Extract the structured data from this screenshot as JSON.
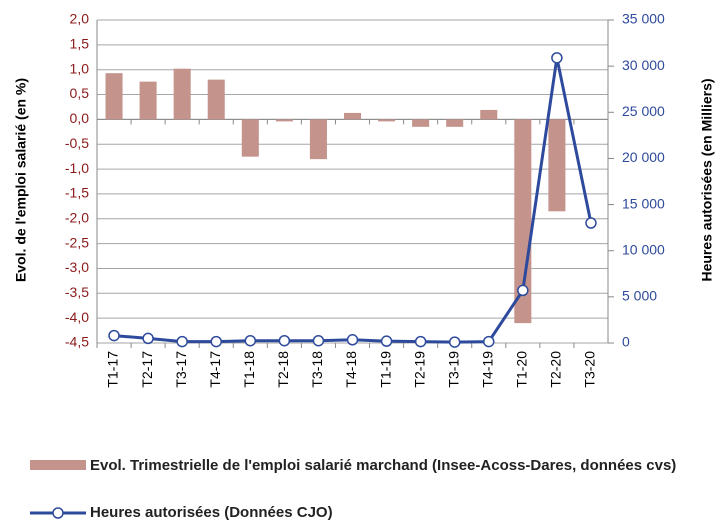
{
  "chart_data": {
    "type": "bar_line",
    "categories": [
      "T1-17",
      "T2-17",
      "T3-17",
      "T4-17",
      "T1-18",
      "T2-18",
      "T3-18",
      "T4-18",
      "T1-19",
      "T2-19",
      "T3-19",
      "T4-19",
      "T1-20",
      "T2-20",
      "T3-20"
    ],
    "series": [
      {
        "name": "Evol. Trimestrielle de l'emploi salarié marchand (Insee-Acoss-Dares, données cvs)",
        "type": "bar",
        "color": "#c4938c",
        "axis": "y",
        "values": [
          0.93,
          0.76,
          1.02,
          0.8,
          -0.75,
          -0.04,
          -0.8,
          0.13,
          -0.04,
          -0.15,
          -0.15,
          0.19,
          -4.1,
          -1.85,
          null
        ]
      },
      {
        "name": "Heures autorisées (Données CJO)",
        "type": "line",
        "color": "#2e4a9c",
        "axis": "y2",
        "values": [
          800,
          500,
          150,
          150,
          250,
          250,
          250,
          350,
          200,
          150,
          100,
          150,
          5700,
          30900,
          13000
        ]
      }
    ],
    "ylabel": "Evol. de l'emploi salarié (en %)",
    "y2label": "Heures autorisées (en Milliers)",
    "ylim": [
      -4.5,
      2.0
    ],
    "yticks": [
      {
        "value": -4.5,
        "label": "-4,5"
      },
      {
        "value": -4.0,
        "label": "-4,0"
      },
      {
        "value": -3.5,
        "label": "-3,5"
      },
      {
        "value": -3.0,
        "label": "-3,0"
      },
      {
        "value": -2.5,
        "label": "-2,5"
      },
      {
        "value": -2.0,
        "label": "-2,0"
      },
      {
        "value": -1.5,
        "label": "-1,5"
      },
      {
        "value": -1.0,
        "label": "-1,0"
      },
      {
        "value": -0.5,
        "label": "-0,5"
      },
      {
        "value": 0,
        "label": "0,0"
      },
      {
        "value": 0.5,
        "label": "0,5"
      },
      {
        "value": 1.0,
        "label": "1,0"
      },
      {
        "value": 1.5,
        "label": "1,5"
      },
      {
        "value": 2.0,
        "label": "2,0"
      }
    ],
    "y2lim": [
      0,
      35000
    ],
    "y2ticks": [
      0,
      {
        "value": 5000,
        "label": "5 000"
      },
      {
        "value": 10000,
        "label": "10 000"
      },
      {
        "value": 15000,
        "label": "15 000"
      },
      {
        "value": 20000,
        "label": "20 000"
      },
      {
        "value": 25000,
        "label": "25 000"
      },
      {
        "value": 30000,
        "label": "30 000"
      },
      {
        "value": 35000,
        "label": "35 000"
      }
    ],
    "grid": true
  }
}
